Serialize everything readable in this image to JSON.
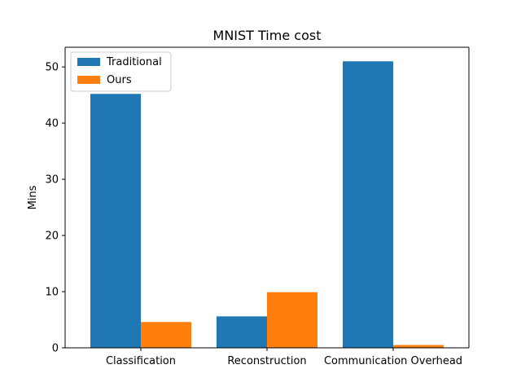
{
  "chart_data": {
    "type": "bar",
    "title": "MNIST Time cost",
    "xlabel": "",
    "ylabel": "Mins",
    "categories": [
      "Classification",
      "Reconstruction",
      "Communication Overhead"
    ],
    "series": [
      {
        "name": "Traditional",
        "color": "#1f77b4",
        "values": [
          45.2,
          5.6,
          51.0
        ]
      },
      {
        "name": "Ours",
        "color": "#ff7f0e",
        "values": [
          4.6,
          9.9,
          0.5
        ]
      }
    ],
    "ylim": [
      0,
      53.5
    ],
    "yticks": [
      0,
      10,
      20,
      30,
      40,
      50
    ],
    "grid": false,
    "legend_position": "top-left"
  }
}
